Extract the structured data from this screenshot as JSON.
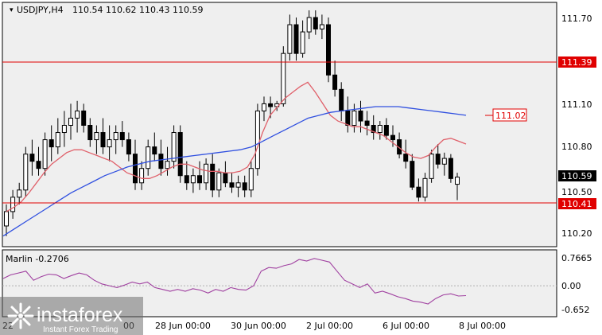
{
  "header": {
    "symbol": "USDJPY,H4",
    "ohlc": "110.54 110.62 110.43 110.59"
  },
  "indicator": {
    "label": "Marlin -0.2706",
    "ticks": [
      "0.7665",
      "0.00",
      "-0.652"
    ]
  },
  "price_axis": {
    "ticks": [
      "111.70",
      "111.39",
      "111.10",
      "110.80",
      "110.59",
      "110.50",
      "110.41",
      "110.20"
    ]
  },
  "time_axis": {
    "labels": [
      "22",
      "28 Jun 00:00",
      "30 Jun 00:00",
      "2 Jul 00:00",
      "6 Jul 00:00",
      "8 Jul 00:00"
    ],
    "hidden_label": "00"
  },
  "markers": {
    "resistance": "111.39",
    "support": "110.41",
    "target": "111.02",
    "current": "110.59"
  },
  "watermark": {
    "brand": "instaforex",
    "tagline": "Instant Forex Trading"
  },
  "colors": {
    "background": "#ffffff",
    "plot_bg": "#efefef",
    "level_line": "#e00000",
    "ma_fast": "#e0606a",
    "ma_slow": "#3050e0",
    "oscillator": "#a040a0",
    "candle": "#000000"
  },
  "chart_data": [
    {
      "type": "candlestick",
      "symbol": "USDJPY",
      "timeframe": "H4",
      "ylim": [
        110.1,
        111.8
      ],
      "horizontal_levels": [
        111.39,
        110.41
      ],
      "target_level": 111.02,
      "last_price": 110.59,
      "candles": [
        [
          110.25,
          110.4,
          110.18,
          110.35
        ],
        [
          110.35,
          110.5,
          110.3,
          110.45
        ],
        [
          110.45,
          110.55,
          110.4,
          110.5
        ],
        [
          110.5,
          110.8,
          110.45,
          110.75
        ],
        [
          110.75,
          110.85,
          110.6,
          110.7
        ],
        [
          110.7,
          110.8,
          110.6,
          110.65
        ],
        [
          110.65,
          110.9,
          110.6,
          110.85
        ],
        [
          110.85,
          110.95,
          110.7,
          110.8
        ],
        [
          110.8,
          111.0,
          110.75,
          110.9
        ],
        [
          110.9,
          111.05,
          110.8,
          110.95
        ],
        [
          110.95,
          111.1,
          110.85,
          111.0
        ],
        [
          111.0,
          111.12,
          110.9,
          111.05
        ],
        [
          111.05,
          111.1,
          110.9,
          110.95
        ],
        [
          110.95,
          111.0,
          110.8,
          110.85
        ],
        [
          110.85,
          110.95,
          110.75,
          110.9
        ],
        [
          110.9,
          111.0,
          110.75,
          110.8
        ],
        [
          110.8,
          110.95,
          110.7,
          110.85
        ],
        [
          110.85,
          110.95,
          110.75,
          110.9
        ],
        [
          110.9,
          110.98,
          110.8,
          110.85
        ],
        [
          110.85,
          110.9,
          110.7,
          110.75
        ],
        [
          110.75,
          110.85,
          110.5,
          110.55
        ],
        [
          110.55,
          110.7,
          110.5,
          110.65
        ],
        [
          110.65,
          110.85,
          110.6,
          110.8
        ],
        [
          110.8,
          110.9,
          110.7,
          110.75
        ],
        [
          110.75,
          110.85,
          110.6,
          110.65
        ],
        [
          110.65,
          110.8,
          110.6,
          110.7
        ],
        [
          110.7,
          110.95,
          110.65,
          110.9
        ],
        [
          110.9,
          110.95,
          110.55,
          110.6
        ],
        [
          110.6,
          110.7,
          110.5,
          110.55
        ],
        [
          110.55,
          110.65,
          110.48,
          110.6
        ],
        [
          110.6,
          110.7,
          110.5,
          110.55
        ],
        [
          110.55,
          110.72,
          110.5,
          110.68
        ],
        [
          110.68,
          110.75,
          110.45,
          110.5
        ],
        [
          110.5,
          110.65,
          110.45,
          110.62
        ],
        [
          110.62,
          110.7,
          110.52,
          110.55
        ],
        [
          110.55,
          110.62,
          110.48,
          110.52
        ],
        [
          110.52,
          110.6,
          110.45,
          110.55
        ],
        [
          110.55,
          110.6,
          110.45,
          110.5
        ],
        [
          110.5,
          110.7,
          110.45,
          110.65
        ],
        [
          110.65,
          111.1,
          110.6,
          111.05
        ],
        [
          111.05,
          111.15,
          110.98,
          111.1
        ],
        [
          111.1,
          111.15,
          111.0,
          111.08
        ],
        [
          111.08,
          111.12,
          111.05,
          111.1
        ],
        [
          111.1,
          111.5,
          111.08,
          111.45
        ],
        [
          111.45,
          111.72,
          111.4,
          111.65
        ],
        [
          111.65,
          111.7,
          111.4,
          111.45
        ],
        [
          111.45,
          111.68,
          111.42,
          111.6
        ],
        [
          111.6,
          111.75,
          111.55,
          111.7
        ],
        [
          111.7,
          111.75,
          111.58,
          111.62
        ],
        [
          111.62,
          111.72,
          111.55,
          111.65
        ],
        [
          111.65,
          111.7,
          111.25,
          111.3
        ],
        [
          111.3,
          111.4,
          111.15,
          111.2
        ],
        [
          111.2,
          111.25,
          110.98,
          111.05
        ],
        [
          111.05,
          111.15,
          110.9,
          110.95
        ],
        [
          110.95,
          111.1,
          110.9,
          111.05
        ],
        [
          111.05,
          111.12,
          110.9,
          110.98
        ],
        [
          110.98,
          111.05,
          110.88,
          110.95
        ],
        [
          110.95,
          111.02,
          110.85,
          110.9
        ],
        [
          110.9,
          110.98,
          110.85,
          110.95
        ],
        [
          110.95,
          111.0,
          110.85,
          110.88
        ],
        [
          110.88,
          110.95,
          110.8,
          110.85
        ],
        [
          110.85,
          110.9,
          110.72,
          110.75
        ],
        [
          110.75,
          110.85,
          110.65,
          110.7
        ],
        [
          110.7,
          110.75,
          110.5,
          110.52
        ],
        [
          110.52,
          110.58,
          110.42,
          110.45
        ],
        [
          110.45,
          110.62,
          110.42,
          110.58
        ],
        [
          110.58,
          110.78,
          110.55,
          110.75
        ],
        [
          110.75,
          110.82,
          110.65,
          110.68
        ],
        [
          110.68,
          110.76,
          110.6,
          110.72
        ],
        [
          110.72,
          110.75,
          110.55,
          110.58
        ],
        [
          110.54,
          110.62,
          110.43,
          110.59
        ]
      ],
      "ma_fast": [
        110.35,
        110.38,
        110.42,
        110.48,
        110.55,
        110.62,
        110.68,
        110.72,
        110.76,
        110.78,
        110.78,
        110.76,
        110.74,
        110.72,
        110.7,
        110.66,
        110.62,
        110.6,
        110.58,
        110.58,
        110.6,
        110.63,
        110.66,
        110.68,
        110.68,
        110.66,
        110.64,
        110.63,
        110.63,
        110.62,
        110.62,
        110.63,
        110.66,
        110.75,
        110.9,
        111.02,
        111.08,
        111.14,
        111.18,
        111.22,
        111.25,
        111.18,
        111.1,
        111.02,
        110.98,
        110.96,
        110.94,
        110.94,
        110.92,
        110.9,
        110.88,
        110.84,
        110.8,
        110.76,
        110.73,
        110.72,
        110.74,
        110.8,
        110.85,
        110.86,
        110.84,
        110.82
      ],
      "ma_slow": [
        110.18,
        110.23,
        110.28,
        110.33,
        110.38,
        110.43,
        110.48,
        110.52,
        110.56,
        110.6,
        110.63,
        110.66,
        110.68,
        110.7,
        110.71,
        110.72,
        110.73,
        110.74,
        110.75,
        110.76,
        110.77,
        110.78,
        110.8,
        110.84,
        110.88,
        110.92,
        110.96,
        111.0,
        111.02,
        111.04,
        111.05,
        111.06,
        111.07,
        111.08,
        111.08,
        111.08,
        111.07,
        111.06,
        111.05,
        111.04,
        111.03,
        111.02
      ],
      "ma_fast_x_start": 22,
      "ma_slow_x_start": 0
    },
    {
      "type": "line",
      "name": "Marlin",
      "last_value": -0.2706,
      "ylim": [
        -0.652,
        0.7665
      ],
      "values": [
        0.2,
        0.3,
        0.35,
        0.4,
        0.15,
        0.25,
        0.32,
        0.3,
        0.2,
        0.28,
        0.35,
        0.3,
        0.15,
        0.05,
        0.0,
        -0.05,
        0.02,
        0.1,
        0.05,
        0.1,
        -0.05,
        -0.1,
        -0.15,
        -0.1,
        -0.15,
        -0.08,
        -0.12,
        -0.2,
        -0.1,
        -0.15,
        -0.05,
        -0.1,
        -0.12,
        0.0,
        0.4,
        0.5,
        0.48,
        0.55,
        0.6,
        0.72,
        0.68,
        0.75,
        0.7,
        0.65,
        0.4,
        0.15,
        0.05,
        -0.05,
        0.05,
        -0.2,
        -0.15,
        -0.22,
        -0.3,
        -0.35,
        -0.42,
        -0.45,
        -0.5,
        -0.35,
        -0.25,
        -0.22,
        -0.28,
        -0.27
      ]
    }
  ]
}
